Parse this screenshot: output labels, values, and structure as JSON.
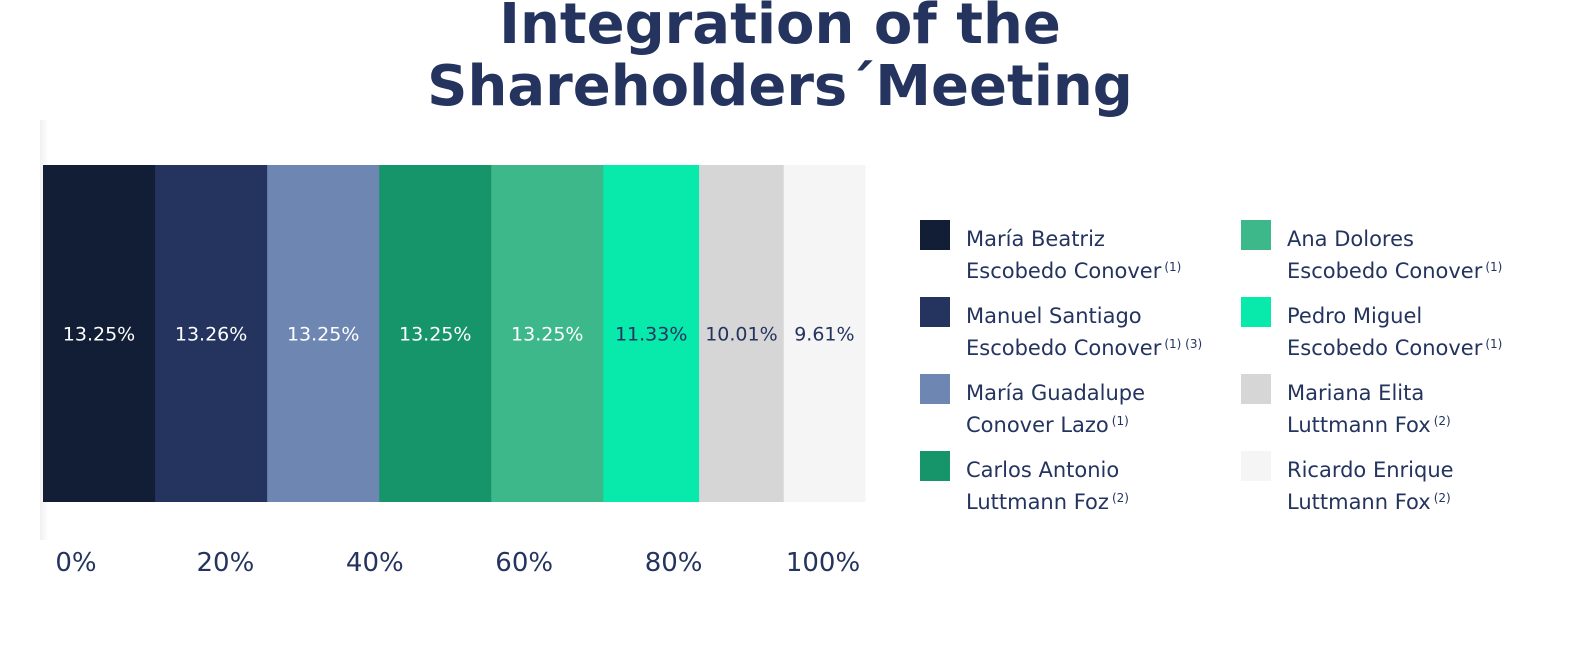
{
  "chart_data": {
    "type": "bar",
    "orientation": "horizontal-stacked-100",
    "title": "Integration of the Shareholders´Meeting",
    "title_lines": [
      "Integration of the",
      "Shareholders´Meeting"
    ],
    "xlim": [
      0,
      100
    ],
    "ticks": [
      "0%",
      "20%",
      "40%",
      "60%",
      "80%",
      "100%"
    ],
    "legend_placement": "right",
    "series": [
      {
        "line1": "María Beatriz",
        "line2": "Escobedo Conover",
        "note": "(1)",
        "value": 13.25,
        "label": "13.25%",
        "color": "#111e35",
        "text_color": "#ffffff"
      },
      {
        "line1": "Manuel Santiago",
        "line2": "Escobedo Conover",
        "note": "(1) (3)",
        "value": 13.26,
        "label": "13.26%",
        "color": "#24345f",
        "text_color": "#ffffff"
      },
      {
        "line1": "María Guadalupe",
        "line2": "Conover Lazo",
        "note": "(1)",
        "value": 13.25,
        "label": "13.25%",
        "color": "#6e86b2",
        "text_color": "#ffffff"
      },
      {
        "line1": "Carlos Antonio",
        "line2": "Luttmann Foz",
        "note": "(2)",
        "value": 13.25,
        "label": "13.25%",
        "color": "#17956a",
        "text_color": "#ffffff"
      },
      {
        "line1": "Ana Dolores",
        "line2": "Escobedo Conover",
        "note": "(1)",
        "value": 13.25,
        "label": "13.25%",
        "color": "#3db88a",
        "text_color": "#ffffff"
      },
      {
        "line1": "Pedro Miguel",
        "line2": "Escobedo Conover",
        "note": "(1)",
        "value": 11.33,
        "label": "11.33%",
        "color": "#07eaab",
        "text_color": "#24345f"
      },
      {
        "line1": "Mariana Elita",
        "line2": "Luttmann Fox",
        "note": "(2)",
        "value": 10.01,
        "label": "10.01%",
        "color": "#d6d6d6",
        "text_color": "#24345f"
      },
      {
        "line1": "Ricardo Enrique",
        "line2": "Luttmann Fox",
        "note": "(2)",
        "value": 9.61,
        "label": "9.61%",
        "color": "#f5f5f5",
        "text_color": "#24345f"
      }
    ]
  }
}
